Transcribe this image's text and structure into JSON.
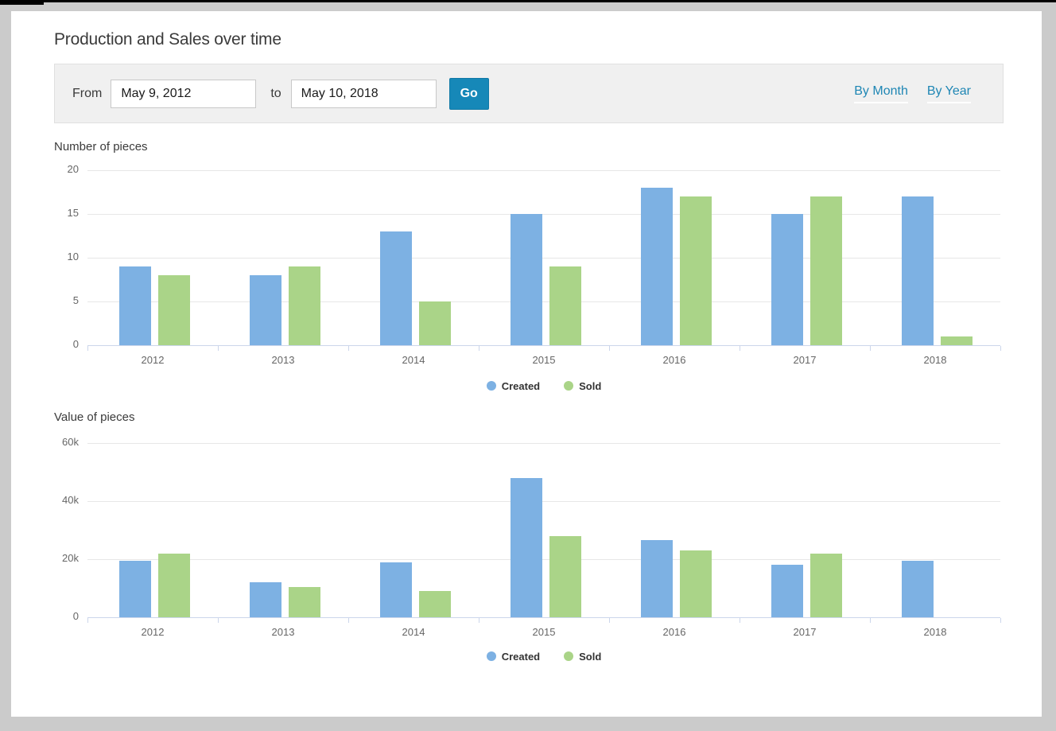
{
  "window": {
    "frame_color": "#cbcbcb",
    "card_color": "#ffffff"
  },
  "header": {
    "title": "Production and Sales over time"
  },
  "filter_bar": {
    "from_label": "From",
    "from_value": "May 9, 2012",
    "to_label": "to",
    "to_value": "May 10, 2018",
    "go_label": "Go",
    "links": [
      {
        "label": "By Month"
      },
      {
        "label": "By Year"
      }
    ]
  },
  "colors": {
    "created_series": "#7db1e3",
    "sold_series": "#aad488",
    "accent": "#1688b8",
    "link": "#1e86b4",
    "axis_line": "#ccd6eb",
    "gridline": "#e7e7e7",
    "tick_label": "#666666"
  },
  "chart_data": [
    {
      "type": "bar",
      "title": "Number of pieces",
      "categories": [
        "2012",
        "2013",
        "2014",
        "2015",
        "2016",
        "2017",
        "2018"
      ],
      "series": [
        {
          "name": "Created",
          "color": "#7db1e3",
          "values": [
            9,
            8,
            13,
            15,
            18,
            15,
            17
          ]
        },
        {
          "name": "Sold",
          "color": "#aad488",
          "values": [
            8,
            9,
            5,
            9,
            17,
            17,
            1
          ]
        }
      ],
      "ylim": [
        0,
        20
      ],
      "yticks": [
        0,
        5,
        10,
        15,
        20
      ],
      "ytick_labels": [
        "0",
        "5",
        "10",
        "15",
        "20"
      ],
      "grid": true,
      "legend_position": "bottom"
    },
    {
      "type": "bar",
      "title": "Value of pieces",
      "categories": [
        "2012",
        "2013",
        "2014",
        "2015",
        "2016",
        "2017",
        "2018"
      ],
      "series": [
        {
          "name": "Created",
          "color": "#7db1e3",
          "values": [
            19500,
            12000,
            19000,
            48000,
            26500,
            18000,
            19500
          ]
        },
        {
          "name": "Sold",
          "color": "#aad488",
          "values": [
            22000,
            10500,
            9000,
            28000,
            23000,
            22000,
            0
          ]
        }
      ],
      "ylim": [
        0,
        60000
      ],
      "yticks": [
        0,
        20000,
        40000,
        60000
      ],
      "ytick_labels": [
        "0",
        "20k",
        "40k",
        "60k"
      ],
      "grid": true,
      "legend_position": "bottom"
    }
  ]
}
